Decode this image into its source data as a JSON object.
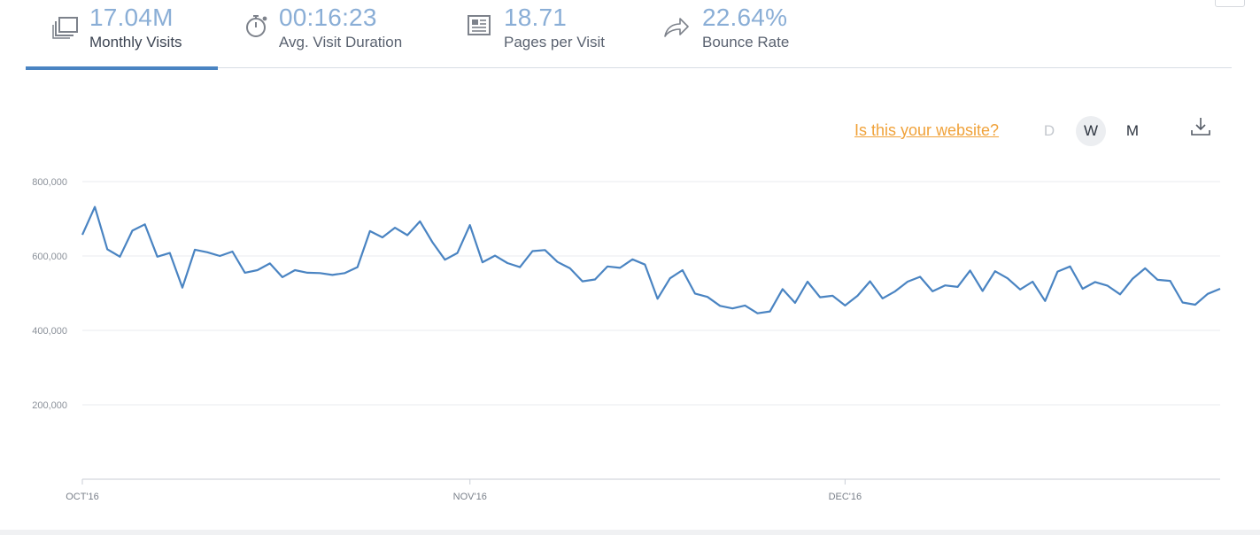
{
  "metrics": [
    {
      "value": "17.04M",
      "label": "Monthly Visits",
      "icon": "copy-pages-icon",
      "active": true
    },
    {
      "value": "00:16:23",
      "label": "Avg. Visit Duration",
      "icon": "stopwatch-icon",
      "active": false
    },
    {
      "value": "18.71",
      "label": "Pages per Visit",
      "icon": "newspaper-icon",
      "active": false
    },
    {
      "value": "22.64%",
      "label": "Bounce Rate",
      "icon": "share-arrow-icon",
      "active": false
    }
  ],
  "controls": {
    "claim_link": "Is this your website?",
    "granularity": [
      "D",
      "W",
      "M"
    ],
    "selected_granularity": "W",
    "download_icon": "download-icon"
  },
  "colors": {
    "accent": "#4a84c2",
    "metric_value": "#8aaed6",
    "claim_link": "#f0a23a",
    "line": "#4a84c2"
  },
  "chart_data": {
    "type": "line",
    "y_tick_labels": [
      "200,000",
      "400,000",
      "600,000",
      "800,000"
    ],
    "y_ticks": [
      200000,
      400000,
      600000,
      800000
    ],
    "ylim": [
      0,
      800000
    ],
    "x_tick_labels": [
      "OCT'16",
      "NOV'16",
      "DEC'16"
    ],
    "x_tick_indices": [
      0,
      31,
      61
    ],
    "grid": true,
    "series": [
      {
        "values": [
          657000,
          732000,
          618000,
          598000,
          668000,
          685000,
          598000,
          608000,
          515000,
          617000,
          610000,
          600000,
          612000,
          555000,
          562000,
          580000,
          543000,
          562000,
          555000,
          554000,
          549000,
          554000,
          570000,
          667000,
          650000,
          676000,
          656000,
          693000,
          637000,
          590000,
          608000,
          683000,
          583000,
          601000,
          581000,
          570000,
          613000,
          616000,
          584000,
          567000,
          532000,
          537000,
          572000,
          568000,
          591000,
          577000,
          485000,
          540000,
          562000,
          499000,
          490000,
          466000,
          459000,
          467000,
          446000,
          451000,
          511000,
          474000,
          531000,
          489000,
          493000,
          467000,
          493000,
          532000,
          486000,
          505000,
          531000,
          544000,
          505000,
          521000,
          517000,
          561000,
          506000,
          559000,
          540000,
          510000,
          531000,
          479000,
          558000,
          572000,
          512000,
          530000,
          520000,
          497000,
          539000,
          567000,
          536000,
          533000,
          475000,
          469000,
          498000,
          512000
        ]
      }
    ]
  }
}
